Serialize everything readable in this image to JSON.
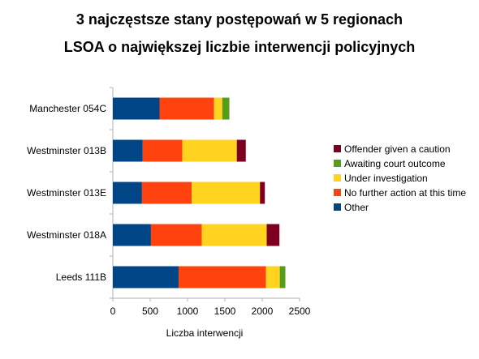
{
  "chart_data": {
    "type": "bar",
    "orientation": "horizontal",
    "stacked": true,
    "title_lines": [
      "3 najczęstsze stany postępowań w 5 regionach",
      "LSOA o największej liczbie interwencji policyjnych"
    ],
    "xlabel": "Liczba interwencji",
    "ylabel": "",
    "xlim": [
      0,
      2500
    ],
    "xticks": [
      0,
      500,
      1000,
      1500,
      2000,
      2500
    ],
    "grid": false,
    "legend_position": "right",
    "categories": [
      "Manchester 054C",
      "Westminster 013B",
      "Westminster 013E",
      "Westminster 018A",
      "Leeds 111B"
    ],
    "series": [
      {
        "name": "Other",
        "color": "#004586",
        "values": [
          625,
          400,
          390,
          510,
          880
        ]
      },
      {
        "name": "No further action at this time",
        "color": "#ff420e",
        "values": [
          730,
          530,
          665,
          680,
          1170
        ]
      },
      {
        "name": "Under investigation",
        "color": "#ffd320",
        "values": [
          110,
          730,
          915,
          870,
          185
        ]
      },
      {
        "name": "Awaiting court outcome",
        "color": "#579d1c",
        "values": [
          95,
          0,
          0,
          0,
          75
        ]
      },
      {
        "name": "Offender given a caution",
        "color": "#7e0021",
        "values": [
          0,
          120,
          65,
          170,
          0
        ]
      }
    ]
  }
}
